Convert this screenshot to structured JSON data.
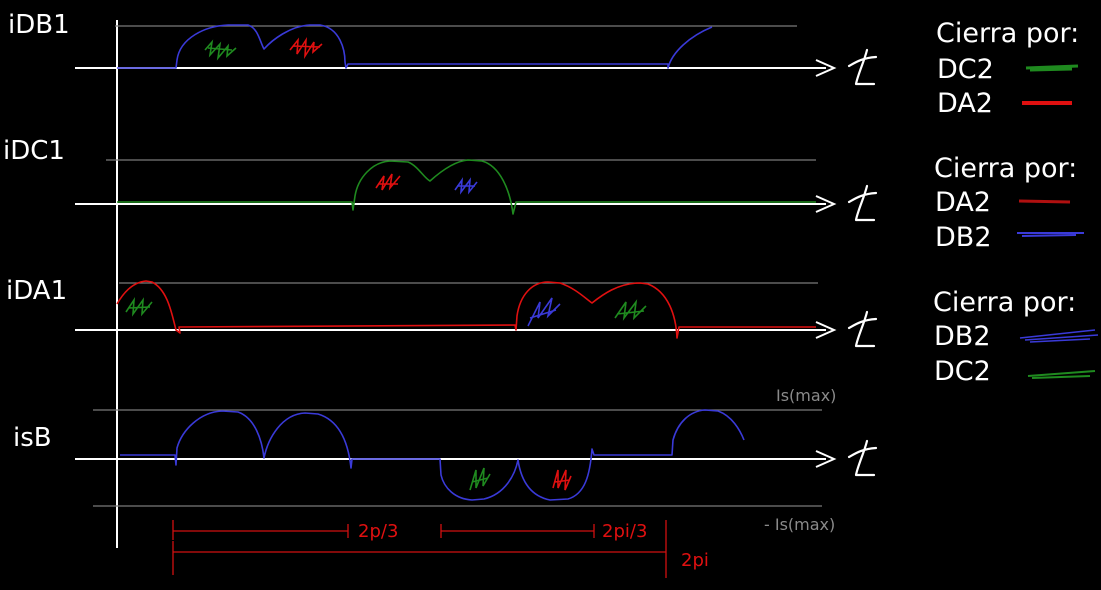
{
  "colors": {
    "blue": "#3a3ad8",
    "green": "#1f8a1f",
    "red": "#e01010",
    "darkgreen": "#2a6a2a",
    "white": "#ffffff",
    "gray": "#8a8a8a"
  },
  "signals": [
    {
      "label": "iDB1",
      "time_symbol": "t"
    },
    {
      "label": "iDC1",
      "time_symbol": "t"
    },
    {
      "label": "iDA1",
      "time_symbol": "t"
    },
    {
      "label": "isB",
      "time_symbol": "t"
    }
  ],
  "isb_refs": {
    "pos": "Is(max)",
    "neg": "- Is(max)"
  },
  "intervals": {
    "first": "2p/3",
    "second": "2pi/3",
    "total": "2pi"
  },
  "legends": [
    {
      "title": "Cierra por:",
      "items": [
        {
          "label": "DC2",
          "color": "green"
        },
        {
          "label": "DA2",
          "color": "red"
        }
      ]
    },
    {
      "title": "Cierra por:",
      "items": [
        {
          "label": "DA2",
          "color": "red"
        },
        {
          "label": "DB2",
          "color": "blue"
        }
      ]
    },
    {
      "title": "Cierra por:",
      "items": [
        {
          "label": "DB2",
          "color": "blue"
        },
        {
          "label": "DC2",
          "color": "green"
        }
      ]
    }
  ]
}
